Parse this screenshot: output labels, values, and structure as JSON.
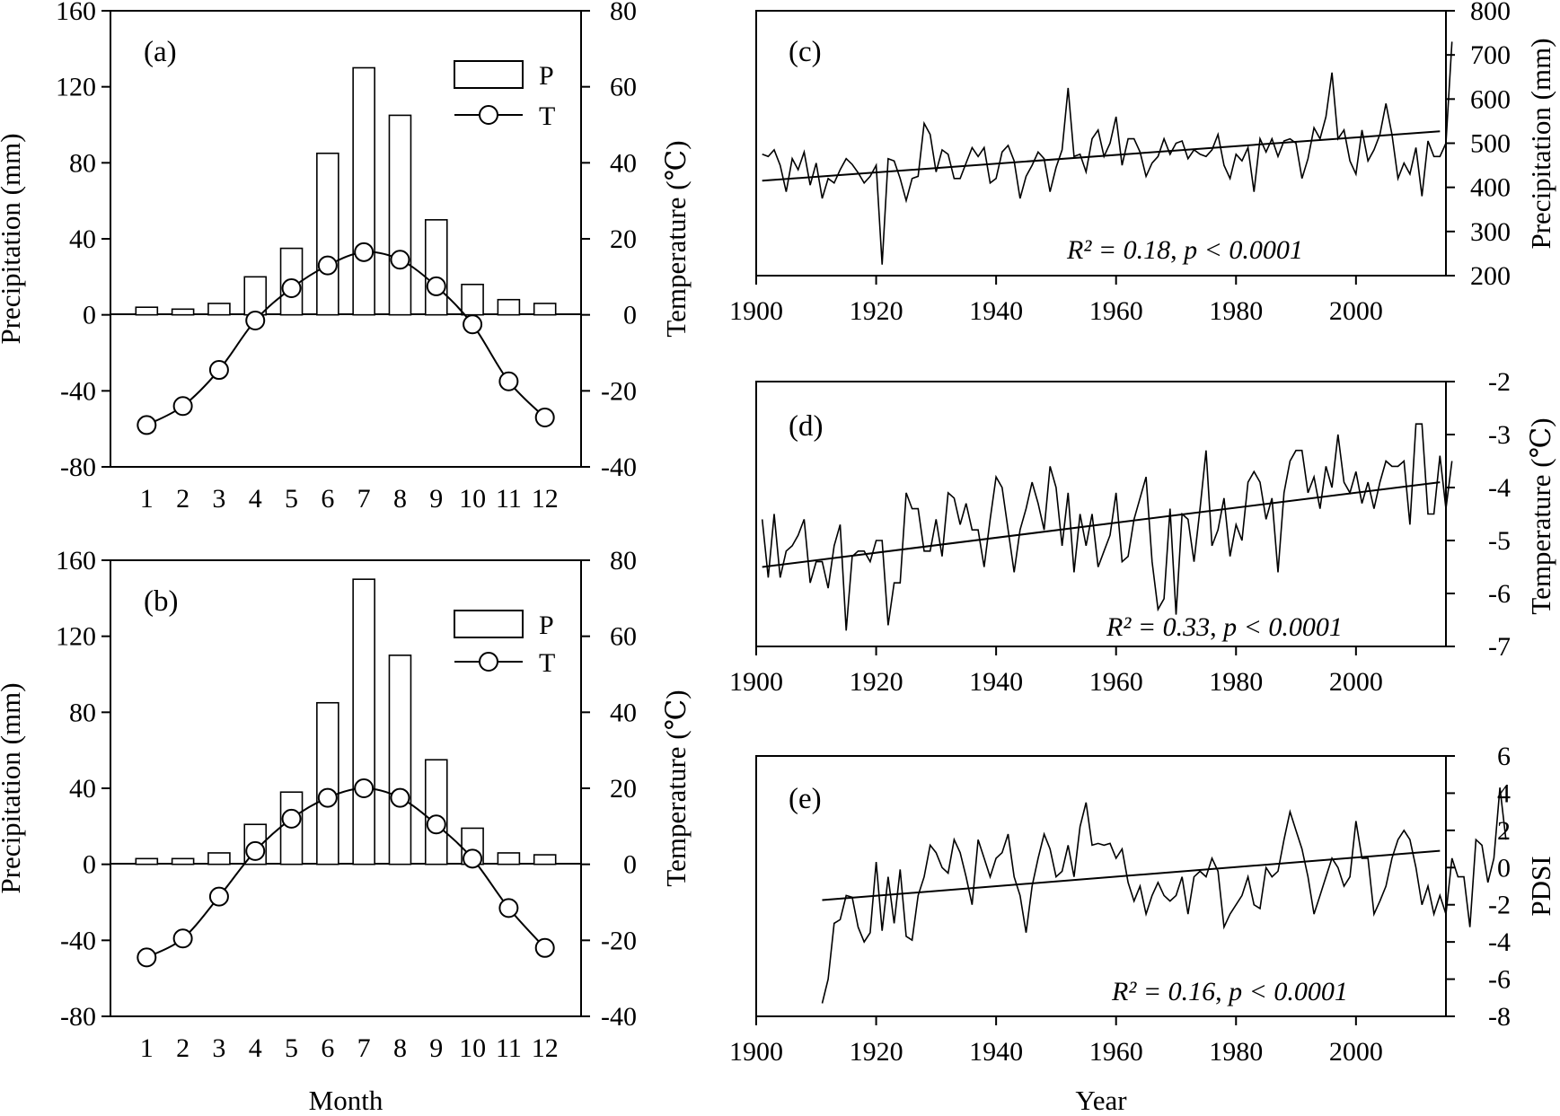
{
  "chart_data": [
    {
      "id": "a",
      "type": "bar+line",
      "panel_label": "(a)",
      "xlabel": "",
      "ylabel_left": "Precipitation (mm)",
      "ylabel_right": "Temperature (℃)",
      "ylim_left": [
        -80,
        160
      ],
      "ylim_right": [
        -40,
        80
      ],
      "yticks_left": [
        "160",
        "120",
        "80",
        "40",
        "0",
        "-40",
        "-80"
      ],
      "yticks_right": [
        "80",
        "60",
        "40",
        "20",
        "0",
        "-20",
        "-40"
      ],
      "categories": [
        "1",
        "2",
        "3",
        "4",
        "5",
        "6",
        "7",
        "8",
        "9",
        "10",
        "11",
        "12"
      ],
      "series": [
        {
          "name": "P",
          "kind": "bar",
          "axis": "left",
          "values": [
            4,
            3,
            6,
            20,
            35,
            85,
            130,
            105,
            50,
            16,
            8,
            6
          ]
        },
        {
          "name": "T",
          "kind": "line-marker",
          "axis": "right",
          "values": [
            -29,
            -24,
            -14.5,
            -1.5,
            7,
            13,
            16.5,
            14.5,
            7.5,
            -2.5,
            -17.5,
            -27
          ]
        }
      ],
      "legend": [
        "P",
        "T"
      ]
    },
    {
      "id": "b",
      "type": "bar+line",
      "panel_label": "(b)",
      "xlabel": "Month",
      "ylabel_left": "Precipitation (mm)",
      "ylabel_right": "Temperature (℃)",
      "ylim_left": [
        -80,
        160
      ],
      "ylim_right": [
        -40,
        80
      ],
      "yticks_left": [
        "160",
        "120",
        "80",
        "40",
        "0",
        "-40",
        "-80"
      ],
      "yticks_right": [
        "80",
        "60",
        "40",
        "20",
        "0",
        "-20",
        "-40"
      ],
      "categories": [
        "1",
        "2",
        "3",
        "4",
        "5",
        "6",
        "7",
        "8",
        "9",
        "10",
        "11",
        "12"
      ],
      "series": [
        {
          "name": "P",
          "kind": "bar",
          "axis": "left",
          "values": [
            3,
            3,
            6,
            21,
            38,
            85,
            150,
            110,
            55,
            19,
            6,
            5
          ]
        },
        {
          "name": "T",
          "kind": "line-marker",
          "axis": "right",
          "values": [
            -24.5,
            -19.5,
            -8.5,
            3.5,
            12,
            17.5,
            20,
            17.5,
            10.5,
            1.5,
            -11.5,
            -22
          ]
        }
      ],
      "legend": [
        "P",
        "T"
      ]
    },
    {
      "id": "c",
      "type": "line",
      "panel_label": "(c)",
      "xlabel": "",
      "ylabel": "Precipitation (mm)",
      "xlim": [
        1900,
        2015
      ],
      "ylim": [
        200,
        800
      ],
      "xticks": [
        "1900",
        "1920",
        "1940",
        "1960",
        "1980",
        "2000"
      ],
      "yticks": [
        "800",
        "700",
        "600",
        "500",
        "400",
        "300",
        "200"
      ],
      "series": [
        {
          "name": "Precipitation",
          "x_start": 1901,
          "values": [
            475,
            470,
            485,
            450,
            390,
            465,
            440,
            480,
            405,
            455,
            375,
            420,
            410,
            440,
            465,
            452,
            433,
            410,
            425,
            450,
            225,
            465,
            460,
            420,
            370,
            420,
            425,
            545,
            520,
            435,
            485,
            475,
            420,
            420,
            455,
            490,
            470,
            490,
            410,
            420,
            480,
            495,
            460,
            375,
            425,
            450,
            480,
            465,
            390,
            445,
            485,
            625,
            470,
            475,
            435,
            510,
            530,
            470,
            500,
            560,
            450,
            510,
            510,
            480,
            425,
            455,
            470,
            510,
            475,
            500,
            505,
            465,
            485,
            475,
            470,
            485,
            520,
            450,
            420,
            475,
            460,
            490,
            390,
            510,
            480,
            510,
            470,
            505,
            510,
            500,
            420,
            465,
            535,
            510,
            560,
            660,
            510,
            530,
            460,
            430,
            530,
            460,
            485,
            520,
            590,
            520,
            420,
            455,
            430,
            490,
            380,
            505,
            470,
            470,
            500,
            730
          ]
        },
        {
          "name": "Trend",
          "kind": "trend",
          "x": [
            1901,
            2014
          ],
          "values": [
            415,
            527
          ]
        }
      ],
      "annotation": {
        "r2": "R² = 0.18",
        "p": "p < 0.0001"
      }
    },
    {
      "id": "d",
      "type": "line",
      "panel_label": "(d)",
      "xlabel": "",
      "ylabel": "Temperature (℃)",
      "xlim": [
        1900,
        2015
      ],
      "ylim": [
        -7,
        -2
      ],
      "xticks": [
        "1900",
        "1920",
        "1940",
        "1960",
        "1980",
        "2000"
      ],
      "yticks": [
        "-2",
        "-3",
        "-4",
        "-5",
        "-6",
        "-7"
      ],
      "series": [
        {
          "name": "Temperature",
          "x_start": 1901,
          "values": [
            -4.6,
            -5.7,
            -4.5,
            -5.7,
            -5.2,
            -5.1,
            -4.9,
            -4.6,
            -5.8,
            -5.4,
            -5.4,
            -5.9,
            -5.1,
            -4.7,
            -6.7,
            -5.3,
            -5.2,
            -5.2,
            -5.4,
            -5.0,
            -5.0,
            -6.6,
            -5.8,
            -5.8,
            -4.1,
            -4.4,
            -4.4,
            -5.2,
            -5.2,
            -4.6,
            -5.3,
            -4.1,
            -4.2,
            -4.7,
            -4.3,
            -4.8,
            -4.8,
            -5.5,
            -4.6,
            -3.8,
            -4.0,
            -4.8,
            -5.6,
            -4.8,
            -4.4,
            -3.9,
            -4.3,
            -4.8,
            -3.6,
            -4.0,
            -5.1,
            -4.1,
            -5.6,
            -4.5,
            -5.1,
            -4.5,
            -5.5,
            -5.2,
            -4.9,
            -4.1,
            -5.4,
            -5.3,
            -4.6,
            -4.2,
            -3.8,
            -5.4,
            -6.3,
            -6.1,
            -4.4,
            -6.4,
            -4.5,
            -4.6,
            -5.4,
            -4.4,
            -3.3,
            -5.1,
            -4.8,
            -4.2,
            -5.3,
            -4.7,
            -5.0,
            -3.9,
            -3.7,
            -3.9,
            -4.6,
            -4.2,
            -5.6,
            -4.1,
            -3.5,
            -3.3,
            -3.3,
            -4.1,
            -3.8,
            -4.4,
            -3.6,
            -4.0,
            -3.0,
            -3.9,
            -4.1,
            -3.7,
            -4.3,
            -3.9,
            -4.4,
            -3.9,
            -3.5,
            -3.6,
            -3.6,
            -3.5,
            -4.7,
            -2.8,
            -2.8,
            -4.5,
            -4.5,
            -3.4,
            -4.4,
            -3.5
          ]
        },
        {
          "name": "Trend",
          "kind": "trend",
          "x": [
            1901,
            2014
          ],
          "values": [
            -5.5,
            -3.9
          ]
        }
      ],
      "annotation": {
        "r2": "R² = 0.33",
        "p": "p < 0.0001"
      }
    },
    {
      "id": "e",
      "type": "line",
      "panel_label": "(e)",
      "xlabel": "Year",
      "ylabel": "PDSI",
      "xlim": [
        1900,
        2015
      ],
      "ylim": [
        -8,
        6
      ],
      "xticks": [
        "1900",
        "1920",
        "1940",
        "1960",
        "1980",
        "2000"
      ],
      "yticks": [
        "6",
        "4",
        "2",
        "0",
        "-2",
        "-4",
        "-6",
        "-8"
      ],
      "series": [
        {
          "name": "PDSI",
          "x_start": 1911,
          "values": [
            -7.3,
            -6.0,
            -3.0,
            -2.8,
            -1.5,
            -1.6,
            -3.2,
            -4.0,
            -3.5,
            0.3,
            -3.4,
            -0.5,
            -3.0,
            -0.1,
            -3.7,
            -3.9,
            -1.5,
            -0.5,
            1.2,
            0.8,
            0.0,
            -0.3,
            1.5,
            0.8,
            -0.5,
            -2.0,
            1.5,
            0.5,
            -0.5,
            0.5,
            0.8,
            1.8,
            -0.5,
            -1.5,
            -3.5,
            -1.0,
            0.5,
            1.8,
            1.0,
            -0.5,
            -0.2,
            1.2,
            -0.5,
            2.2,
            3.5,
            1.2,
            1.3,
            1.2,
            1.3,
            0.5,
            1.0,
            -0.8,
            -1.8,
            -1.0,
            -2.5,
            -1.5,
            -0.8,
            -1.5,
            -1.8,
            -1.5,
            -0.5,
            -2.5,
            -0.5,
            -0.2,
            -0.5,
            0.5,
            -0.2,
            -3.2,
            -2.5,
            -2.0,
            -1.5,
            -0.5,
            -2.0,
            -2.2,
            0.0,
            -0.5,
            -0.2,
            1.5,
            3.0,
            2.0,
            1.0,
            -0.5,
            -2.5,
            -1.5,
            -0.5,
            0.5,
            0.0,
            -1.0,
            -0.5,
            2.5,
            0.5,
            0.5,
            -2.5,
            -1.8,
            -1.0,
            0.5,
            1.5,
            2.0,
            1.5,
            0.0,
            -2.0,
            -1.0,
            -2.5,
            -1.5,
            -2.5,
            0.5,
            -0.5,
            -0.5,
            -3.2,
            1.5,
            1.2,
            -0.8,
            0.5,
            4.3,
            1.5
          ]
        },
        {
          "name": "Trend",
          "kind": "trend",
          "x": [
            1911,
            2014
          ],
          "values": [
            -1.75,
            0.9
          ]
        }
      ],
      "annotation": {
        "r2": "R² = 0.16",
        "p": "p < 0.0001"
      }
    }
  ]
}
